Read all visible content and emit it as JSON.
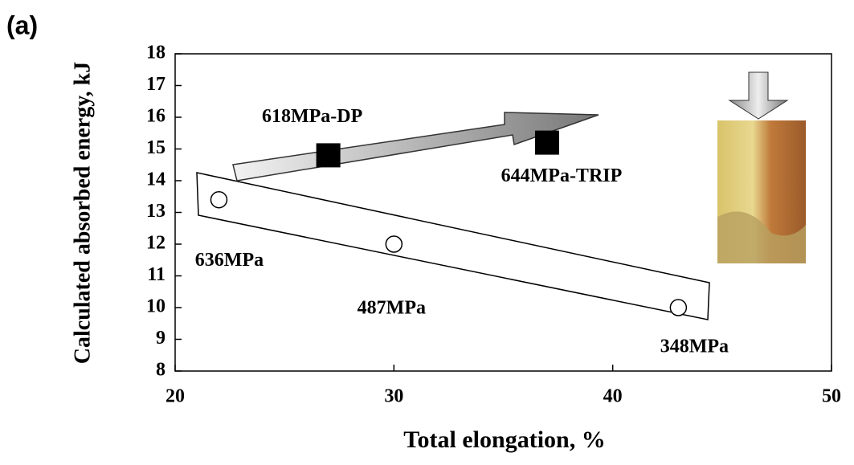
{
  "chart_data": {
    "type": "scatter",
    "title": "(a)",
    "x_label": "Total elongation, %",
    "y_label": "Calculated absorbed energy, kJ",
    "xlim": [
      20,
      50
    ],
    "xticks": [
      20,
      30,
      40,
      50
    ],
    "ylim": [
      8,
      18
    ],
    "yticks": [
      8,
      9,
      10,
      11,
      12,
      13,
      14,
      15,
      16,
      17,
      18
    ],
    "series": [
      {
        "marker": "circle",
        "color": "#ffffff",
        "x": [
          22,
          30,
          43
        ],
        "values": [
          13.4,
          12.0,
          10.0
        ],
        "point_labels": [
          "636MPa",
          "487MPa",
          "348MPa"
        ]
      },
      {
        "marker": "square",
        "color": "#000000",
        "x": [
          27,
          37
        ],
        "values": [
          14.8,
          15.2
        ],
        "point_labels": [
          "618MPa-DP",
          "644MPa-TRIP"
        ]
      }
    ]
  }
}
